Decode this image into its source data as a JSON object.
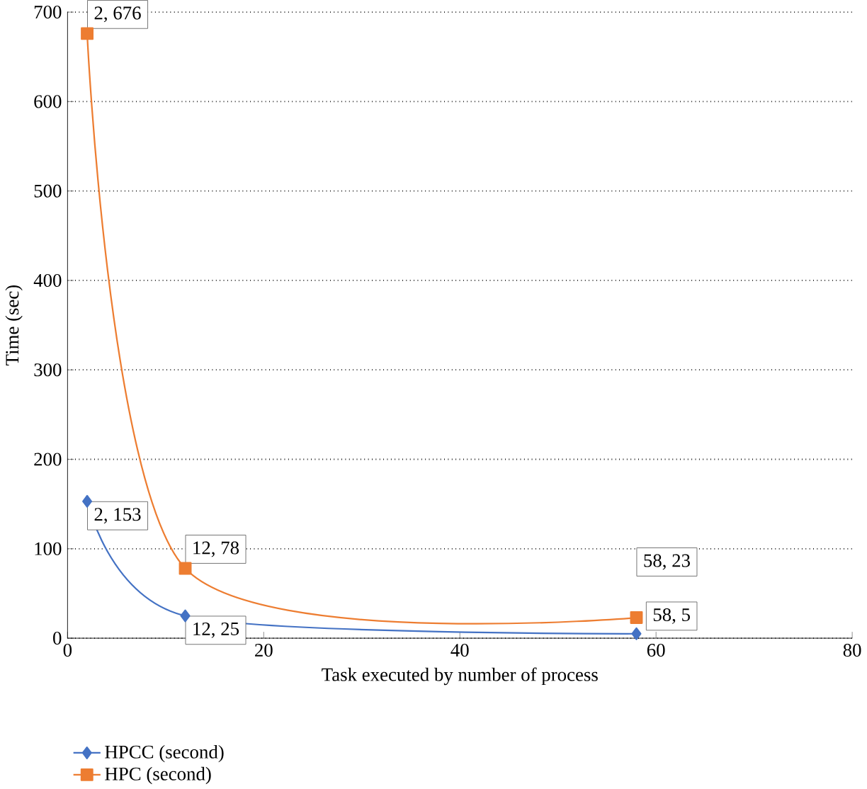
{
  "chart_data": {
    "type": "line",
    "xlabel": "Task executed by number of process",
    "ylabel": "Time (sec)",
    "x": [
      2,
      12,
      58
    ],
    "series": [
      {
        "name": "HPCC (second)",
        "color": "#4472c4",
        "marker": "diamond",
        "values": [
          153,
          25,
          5
        ],
        "value_labels": [
          "2, 153",
          "12, 25",
          "58, 5"
        ]
      },
      {
        "name": "HPC (second)",
        "color": "#ed7d31",
        "marker": "square",
        "values": [
          676,
          78,
          23
        ],
        "value_labels": [
          "2, 676",
          "12, 78",
          "58, 23"
        ]
      }
    ],
    "xlim": [
      0,
      80
    ],
    "xticks": [
      0,
      20,
      40,
      60,
      80
    ],
    "ylim": [
      0,
      700
    ],
    "yticks": [
      0,
      100,
      200,
      300,
      400,
      500,
      600,
      700
    ],
    "grid": "y",
    "legend": "bottom"
  }
}
